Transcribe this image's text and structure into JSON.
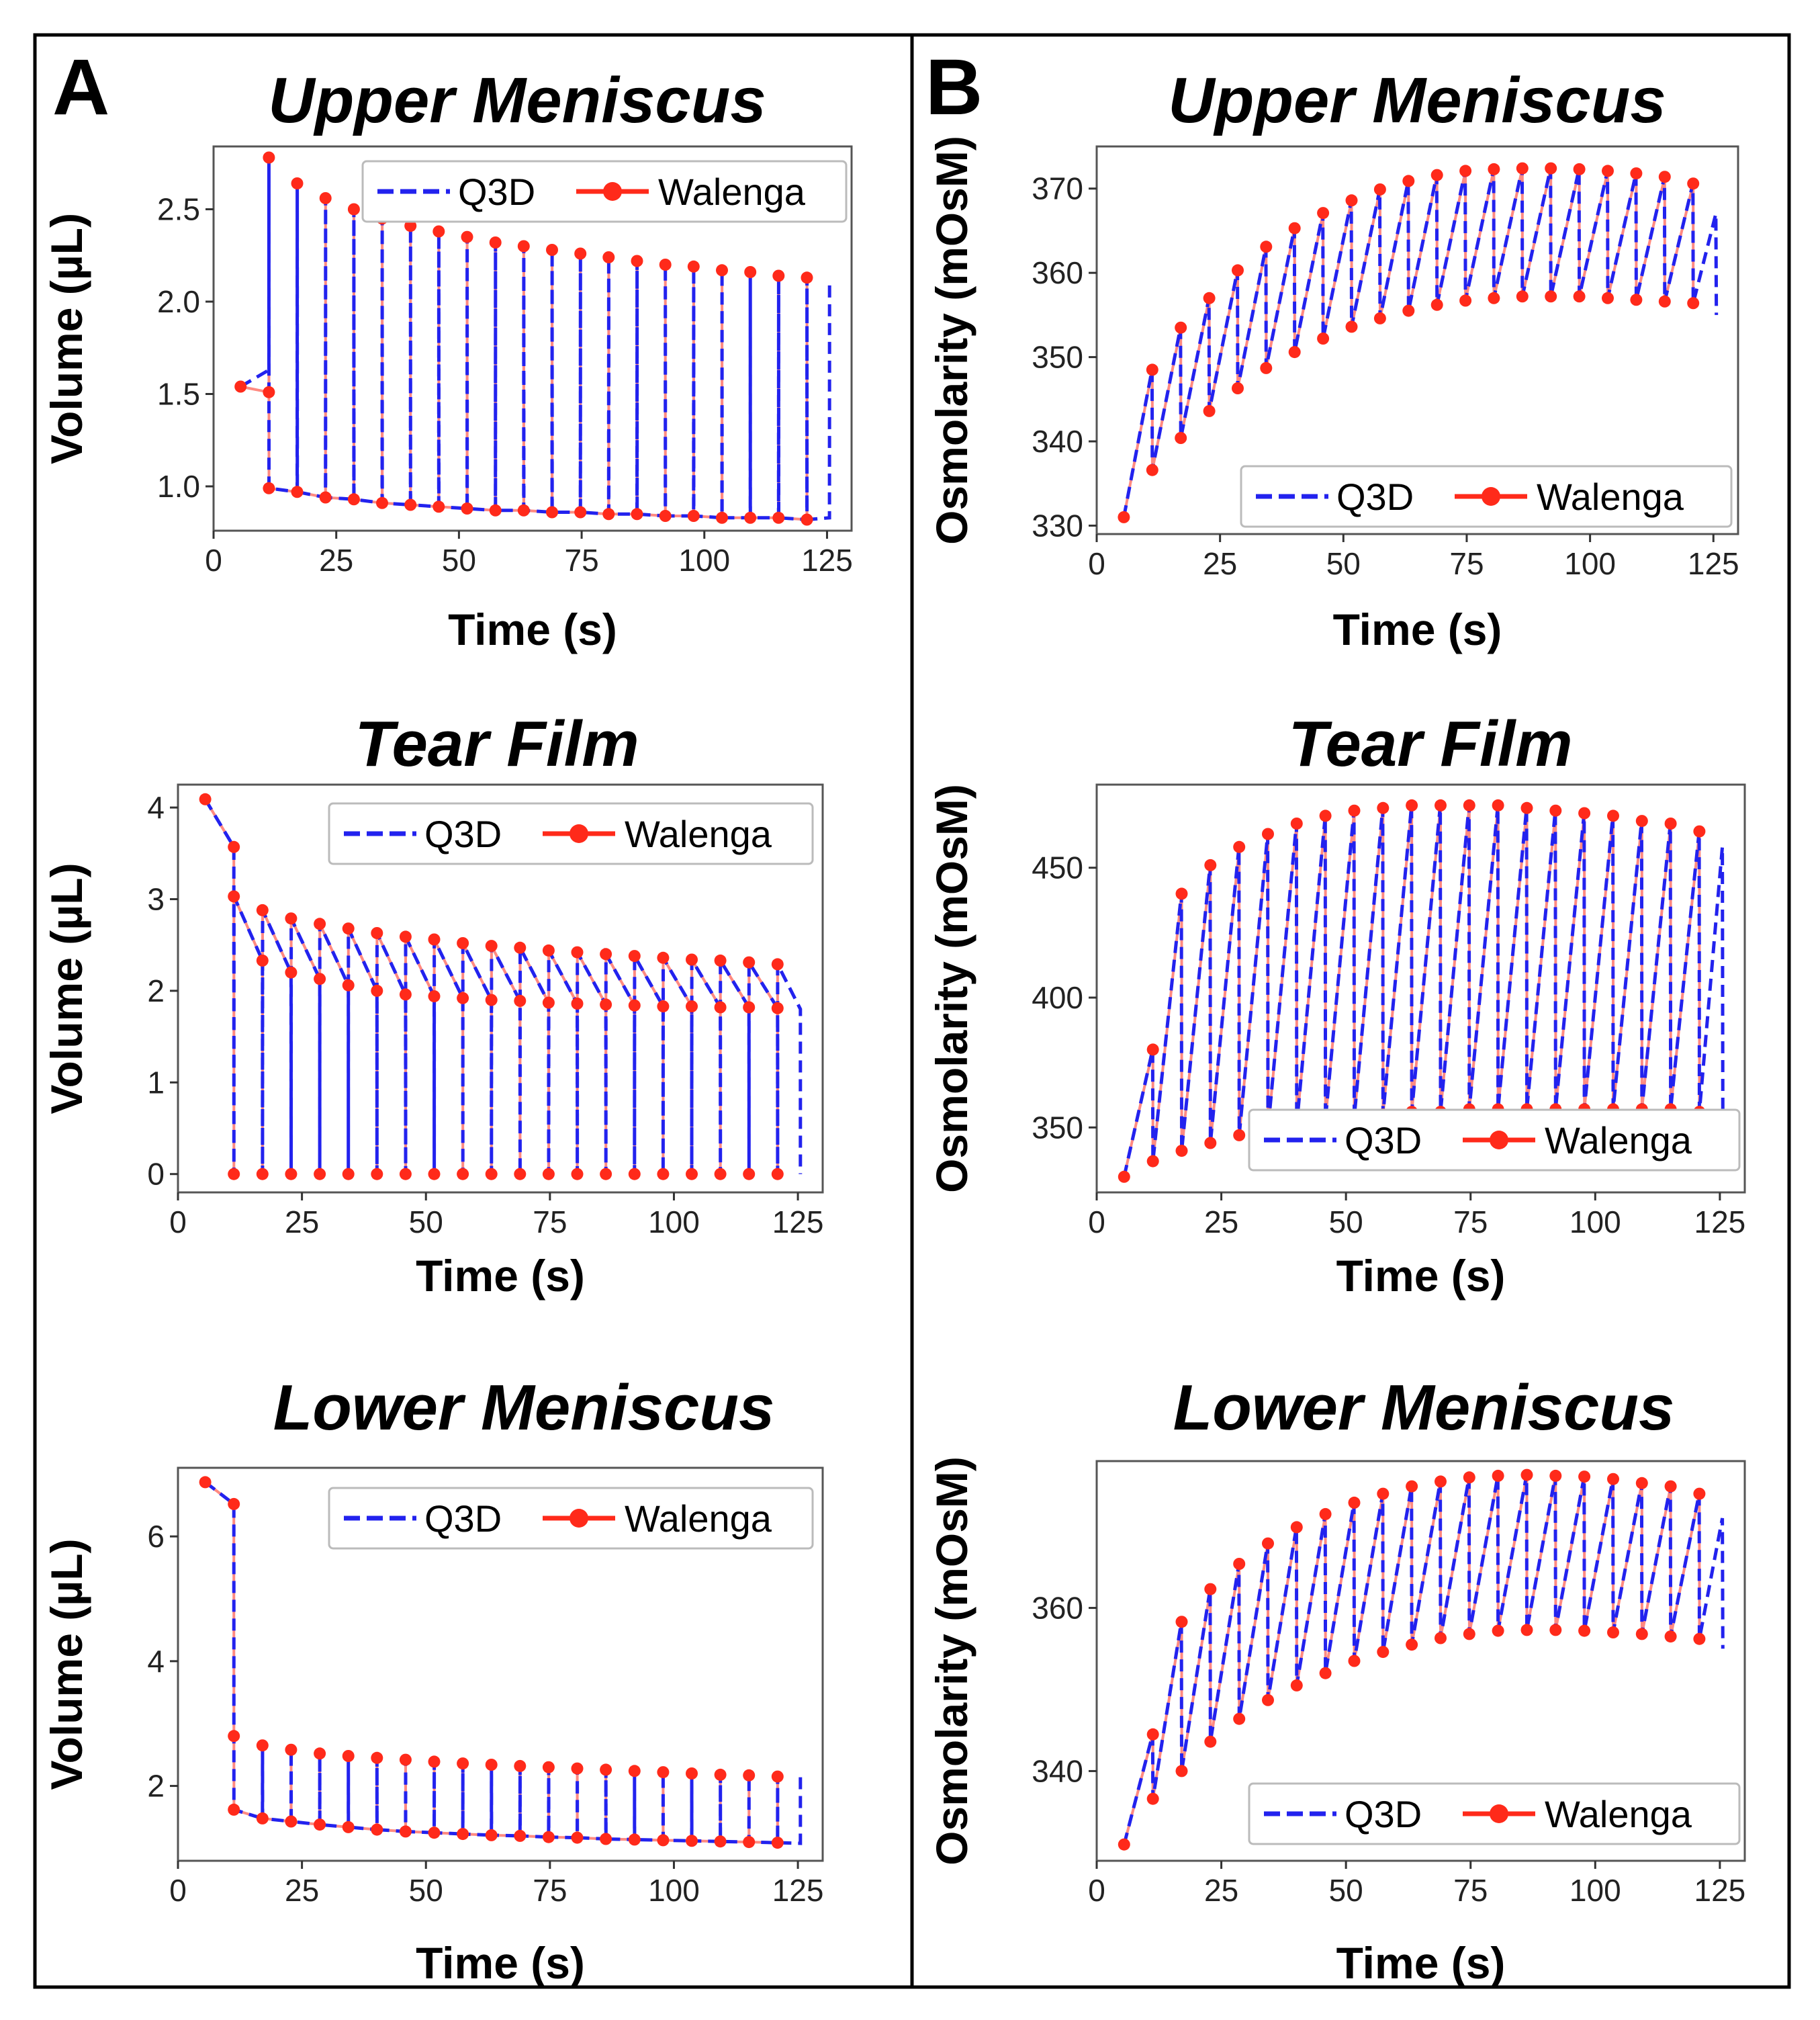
{
  "panels": [
    {
      "letter": "A",
      "column_label": "Volume"
    },
    {
      "letter": "B",
      "column_label": "Osmolarity"
    }
  ],
  "legend": {
    "q3d": "Q3D",
    "walenga": "Walenga"
  },
  "colors": {
    "q3d": "#2222ee",
    "walenga": "#ff2a1a",
    "overlap": "#7a2bd0"
  },
  "chart_data": [
    {
      "type": "line",
      "panel": "A",
      "title": "Upper Meniscus",
      "xlabel": "Time (s)",
      "ylabel": "Volume (µL)",
      "xlim": [
        0,
        130
      ],
      "ylim": [
        0.76,
        2.84
      ],
      "xticks": [
        0,
        25,
        50,
        75,
        100,
        125
      ],
      "xtick_labels": [
        "0",
        "25",
        "50",
        "75",
        "100",
        "125"
      ],
      "yticks": [
        1.0,
        1.5,
        2.0,
        2.5
      ],
      "ytick_labels": [
        "1.0",
        "1.5",
        "2.0",
        "2.5"
      ],
      "legend_position": "top-right",
      "pattern": {
        "t0": 5.5,
        "period": 5.77,
        "n_cycles": 20,
        "t_end": 125.5,
        "y_init": 1.54,
        "y_end_first": 1.63,
        "w_first_pre": 1.51,
        "peaks": [
          2.78,
          2.64,
          2.56,
          2.5,
          2.45,
          2.41,
          2.38,
          2.35,
          2.32,
          2.3,
          2.28,
          2.26,
          2.24,
          2.22,
          2.2,
          2.19,
          2.17,
          2.16,
          2.14,
          2.13,
          2.12
        ],
        "troughs": [
          0.99,
          0.97,
          0.94,
          0.93,
          0.91,
          0.9,
          0.89,
          0.88,
          0.87,
          0.87,
          0.86,
          0.86,
          0.85,
          0.85,
          0.84,
          0.84,
          0.83,
          0.83,
          0.83,
          0.82,
          0.83
        ]
      },
      "series": [
        {
          "name": "Q3D",
          "style": "dashed",
          "values_shown": "piecewise from pattern"
        },
        {
          "name": "Walenga",
          "style": "line-markers",
          "values_shown": "peaks and troughs"
        }
      ]
    },
    {
      "type": "line",
      "panel": "A",
      "title": "Tear Film",
      "xlabel": "Time (s)",
      "ylabel": "Volume (µL)",
      "xlim": [
        0,
        130
      ],
      "ylim": [
        -0.2,
        4.25
      ],
      "xticks": [
        0,
        25,
        50,
        75,
        100,
        125
      ],
      "xtick_labels": [
        "0",
        "25",
        "50",
        "75",
        "100",
        "125"
      ],
      "yticks": [
        0,
        1,
        2,
        3,
        4
      ],
      "ytick_labels": [
        "0",
        "1",
        "2",
        "3",
        "4"
      ],
      "legend_position": "top-right",
      "pattern": {
        "t0": 5.5,
        "period": 5.77,
        "n_cycles": 20,
        "t_end": 125.5,
        "y_init": 4.09,
        "y_end_first": 3.57,
        "peaks": [
          3.03,
          2.88,
          2.79,
          2.73,
          2.68,
          2.63,
          2.59,
          2.56,
          2.52,
          2.49,
          2.47,
          2.44,
          2.42,
          2.4,
          2.38,
          2.36,
          2.34,
          2.33,
          2.31,
          2.29,
          2.28
        ],
        "pre": [
          3.57,
          2.33,
          2.2,
          2.13,
          2.06,
          2.0,
          1.96,
          1.94,
          1.92,
          1.9,
          1.89,
          1.87,
          1.86,
          1.85,
          1.84,
          1.83,
          1.83,
          1.82,
          1.82,
          1.81,
          1.8
        ],
        "bottom": 0
      },
      "series": [
        {
          "name": "Q3D",
          "style": "dashed",
          "values_shown": "piecewise from pattern"
        },
        {
          "name": "Walenga",
          "style": "line-markers",
          "values_shown": "peaks, pre-blink and zero"
        }
      ]
    },
    {
      "type": "line",
      "panel": "A",
      "title": "Lower Meniscus",
      "xlabel": "Time (s)",
      "ylabel": "Volume (µL)",
      "xlim": [
        0,
        130
      ],
      "ylim": [
        0.8,
        7.1
      ],
      "xticks": [
        0,
        25,
        50,
        75,
        100,
        125
      ],
      "xtick_labels": [
        "0",
        "25",
        "50",
        "75",
        "100",
        "125"
      ],
      "yticks": [
        2,
        4,
        6
      ],
      "ytick_labels": [
        "2",
        "4",
        "6"
      ],
      "legend_position": "top-right",
      "pattern": {
        "t0": 5.5,
        "period": 5.77,
        "n_cycles": 20,
        "t_end": 125.5,
        "y_init": 6.87,
        "y_end_first": 6.52,
        "peaks": [
          2.8,
          2.65,
          2.58,
          2.52,
          2.48,
          2.45,
          2.42,
          2.39,
          2.36,
          2.34,
          2.32,
          2.3,
          2.28,
          2.26,
          2.24,
          2.22,
          2.2,
          2.18,
          2.17,
          2.15,
          2.14
        ],
        "troughs": [
          1.62,
          1.48,
          1.43,
          1.38,
          1.34,
          1.3,
          1.27,
          1.25,
          1.23,
          1.21,
          1.2,
          1.18,
          1.17,
          1.15,
          1.14,
          1.13,
          1.12,
          1.11,
          1.1,
          1.09,
          1.08
        ]
      },
      "series": [
        {
          "name": "Q3D",
          "style": "dashed",
          "values_shown": "piecewise from pattern"
        },
        {
          "name": "Walenga",
          "style": "line-markers",
          "values_shown": "peaks and troughs"
        }
      ]
    },
    {
      "type": "line",
      "panel": "B",
      "title": "Upper Meniscus",
      "xlabel": "Time (s)",
      "ylabel": "Osmolarity (mOsM)",
      "xlim": [
        0,
        130
      ],
      "ylim": [
        329,
        375
      ],
      "xticks": [
        0,
        25,
        50,
        75,
        100,
        125
      ],
      "xtick_labels": [
        "0",
        "25",
        "50",
        "75",
        "100",
        "125"
      ],
      "yticks": [
        330,
        340,
        350,
        360,
        370
      ],
      "ytick_labels": [
        "330",
        "340",
        "350",
        "360",
        "370"
      ],
      "legend_position": "bottom-right",
      "pattern": {
        "t0": 5.5,
        "period": 5.77,
        "n_cycles": 20,
        "t_end": 125.5,
        "y_init": 331.0,
        "peaks": [
          348.5,
          353.5,
          357.0,
          360.3,
          363.1,
          365.3,
          367.1,
          368.6,
          369.9,
          370.9,
          371.6,
          372.1,
          372.3,
          372.4,
          372.4,
          372.3,
          372.1,
          371.8,
          371.4,
          370.6,
          367.0
        ],
        "troughs": [
          336.6,
          340.4,
          343.6,
          346.3,
          348.7,
          350.6,
          352.2,
          353.6,
          354.6,
          355.5,
          356.2,
          356.7,
          357.0,
          357.2,
          357.2,
          357.2,
          357.0,
          356.8,
          356.6,
          356.4,
          355.0
        ]
      },
      "series": [
        {
          "name": "Q3D",
          "style": "dashed",
          "values_shown": "piecewise from pattern"
        },
        {
          "name": "Walenga",
          "style": "line-markers",
          "values_shown": "peaks and troughs"
        }
      ]
    },
    {
      "type": "line",
      "panel": "B",
      "title": "Tear Film",
      "xlabel": "Time (s)",
      "ylabel": "Osmolarity (mOsM)",
      "xlim": [
        0,
        130
      ],
      "ylim": [
        325,
        482
      ],
      "xticks": [
        0,
        25,
        50,
        75,
        100,
        125
      ],
      "xtick_labels": [
        "0",
        "25",
        "50",
        "75",
        "100",
        "125"
      ],
      "yticks": [
        350,
        400,
        450
      ],
      "ytick_labels": [
        "350",
        "400",
        "450"
      ],
      "legend_position": "bottom-right",
      "pattern": {
        "t0": 5.5,
        "period": 5.77,
        "n_cycles": 20,
        "t_end": 125.5,
        "y_init": 331.0,
        "peaks": [
          380,
          440,
          451,
          458,
          463,
          467,
          470,
          472,
          473,
          474,
          474,
          474,
          474,
          473,
          472,
          471,
          470,
          468,
          467,
          464,
          458
        ],
        "troughs": [
          337,
          341,
          344,
          347,
          349,
          351,
          353,
          354,
          355,
          356,
          356,
          357,
          357,
          357,
          357,
          357,
          357,
          357,
          357,
          356,
          356
        ]
      },
      "series": [
        {
          "name": "Q3D",
          "style": "dashed",
          "values_shown": "piecewise from pattern"
        },
        {
          "name": "Walenga",
          "style": "line-markers",
          "values_shown": "peaks and troughs"
        }
      ]
    },
    {
      "type": "line",
      "panel": "B",
      "title": "Lower Meniscus",
      "xlabel": "Time (s)",
      "ylabel": "Osmolarity (mOsM)",
      "xlim": [
        0,
        130
      ],
      "ylim": [
        329,
        378
      ],
      "xticks": [
        0,
        25,
        50,
        75,
        100,
        125
      ],
      "xtick_labels": [
        "0",
        "25",
        "50",
        "75",
        "100",
        "125"
      ],
      "yticks": [
        340,
        360
      ],
      "ytick_labels": [
        "340",
        "360"
      ],
      "legend_position": "bottom-right",
      "pattern": {
        "t0": 5.5,
        "period": 5.77,
        "n_cycles": 20,
        "t_end": 125.5,
        "y_init": 331.0,
        "peaks": [
          344.5,
          358.3,
          362.3,
          365.4,
          367.9,
          369.9,
          371.5,
          372.9,
          374.0,
          374.9,
          375.5,
          376.0,
          376.2,
          376.3,
          376.2,
          376.1,
          375.8,
          375.3,
          374.9,
          374.0,
          371.0
        ],
        "troughs": [
          336.6,
          340.0,
          343.6,
          346.4,
          348.7,
          350.5,
          352.0,
          353.5,
          354.6,
          355.5,
          356.3,
          356.8,
          357.2,
          357.3,
          357.3,
          357.2,
          357.0,
          356.8,
          356.5,
          356.2,
          355.0
        ]
      },
      "series": [
        {
          "name": "Q3D",
          "style": "dashed",
          "values_shown": "piecewise from pattern"
        },
        {
          "name": "Walenga",
          "style": "line-markers",
          "values_shown": "peaks and troughs"
        }
      ]
    }
  ]
}
